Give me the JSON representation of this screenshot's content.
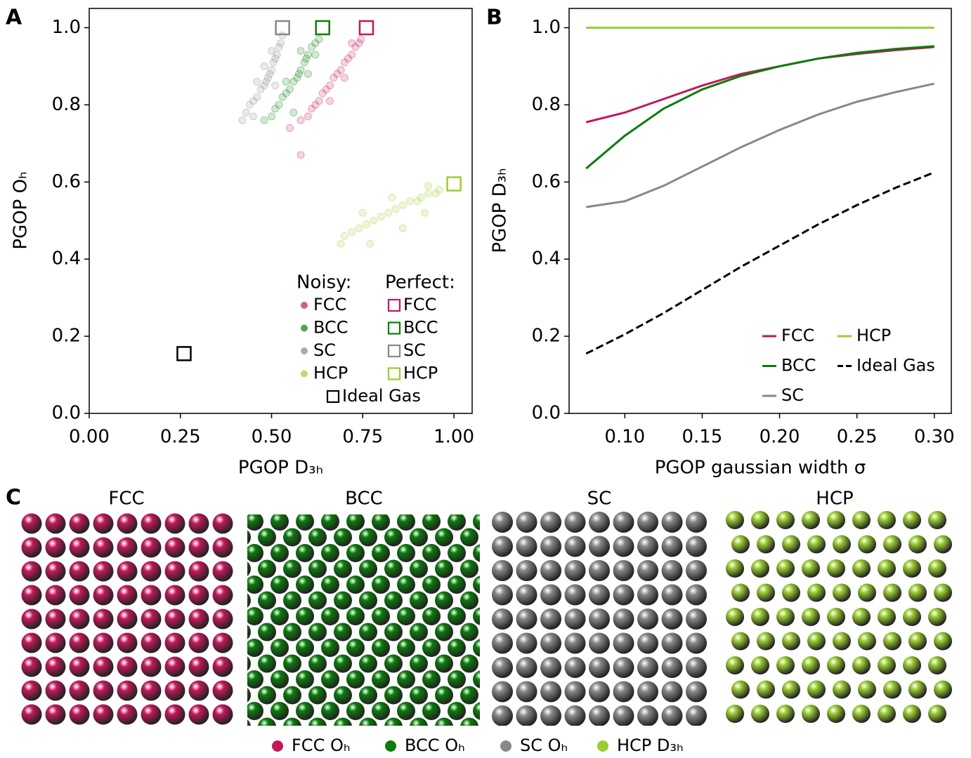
{
  "chart_data": [
    {
      "type": "scatter",
      "panel_label": "A",
      "x_label": "PGOP D₃ₕ",
      "y_label": "PGOP Oₕ",
      "xlim": [
        0,
        1.05
      ],
      "ylim": [
        0,
        1.05
      ],
      "xticks": [
        {
          "value": 0,
          "label": "0.00"
        },
        0.25,
        {
          "value": 0.5,
          "label": "0.50"
        },
        0.75,
        {
          "value": 1,
          "label": "1.00"
        }
      ],
      "yticks": [
        {
          "value": 0,
          "label": "0.0"
        },
        0.2,
        0.4,
        0.6,
        0.8,
        {
          "value": 1,
          "label": "1.0"
        }
      ],
      "legend_titles": [
        "Noisy:",
        "Perfect:"
      ],
      "series": [
        {
          "name": "FCC",
          "group": "Noisy:",
          "marker": "circle",
          "color": "#c2185b",
          "x": [
            0.745,
            0.74,
            0.73,
            0.72,
            0.71,
            0.7,
            0.69,
            0.68,
            0.67,
            0.66,
            0.65,
            0.64,
            0.63,
            0.62,
            0.61,
            0.6,
            0.58,
            0.55,
            0.58,
            0.7,
            0.72,
            0.66
          ],
          "values": [
            0.97,
            0.96,
            0.95,
            0.93,
            0.92,
            0.91,
            0.89,
            0.88,
            0.87,
            0.85,
            0.84,
            0.83,
            0.81,
            0.8,
            0.79,
            0.77,
            0.76,
            0.74,
            0.67,
            0.87,
            0.96,
            0.81
          ]
        },
        {
          "name": "BCC",
          "group": "Noisy:",
          "marker": "circle",
          "color": "#0a7d0a",
          "x": [
            0.63,
            0.62,
            0.61,
            0.6,
            0.595,
            0.59,
            0.58,
            0.575,
            0.57,
            0.56,
            0.55,
            0.54,
            0.53,
            0.52,
            0.51,
            0.5,
            0.48,
            0.56,
            0.6,
            0.58,
            0.54,
            0.62
          ],
          "values": [
            0.97,
            0.96,
            0.95,
            0.93,
            0.92,
            0.91,
            0.89,
            0.88,
            0.87,
            0.86,
            0.84,
            0.83,
            0.82,
            0.8,
            0.79,
            0.77,
            0.76,
            0.78,
            0.88,
            0.94,
            0.86,
            0.93
          ]
        },
        {
          "name": "SC",
          "group": "Noisy:",
          "marker": "circle",
          "color": "#888888",
          "x": [
            0.53,
            0.525,
            0.52,
            0.515,
            0.51,
            0.505,
            0.5,
            0.495,
            0.49,
            0.485,
            0.48,
            0.47,
            0.46,
            0.45,
            0.44,
            0.43,
            0.42,
            0.45,
            0.51,
            0.5,
            0.46,
            0.48
          ],
          "values": [
            0.98,
            0.96,
            0.95,
            0.93,
            0.92,
            0.91,
            0.89,
            0.88,
            0.87,
            0.86,
            0.85,
            0.84,
            0.82,
            0.81,
            0.8,
            0.78,
            0.76,
            0.77,
            0.85,
            0.94,
            0.86,
            0.9
          ]
        },
        {
          "name": "HCP",
          "group": "Noisy:",
          "marker": "circle",
          "color": "#9acd32",
          "x": [
            0.96,
            0.95,
            0.93,
            0.91,
            0.9,
            0.88,
            0.86,
            0.84,
            0.82,
            0.8,
            0.78,
            0.76,
            0.74,
            0.72,
            0.7,
            0.69,
            0.77,
            0.86,
            0.92,
            0.83,
            0.93,
            0.75
          ],
          "values": [
            0.58,
            0.57,
            0.57,
            0.56,
            0.55,
            0.55,
            0.54,
            0.53,
            0.52,
            0.51,
            0.5,
            0.49,
            0.48,
            0.47,
            0.46,
            0.44,
            0.44,
            0.48,
            0.52,
            0.56,
            0.59,
            0.52
          ]
        },
        {
          "name": "FCC",
          "group": "Perfect:",
          "marker": "square",
          "color": "#c2185b",
          "x": [
            0.76
          ],
          "values": [
            1.0
          ]
        },
        {
          "name": "BCC",
          "group": "Perfect:",
          "marker": "square",
          "color": "#0a7d0a",
          "x": [
            0.64
          ],
          "values": [
            1.0
          ]
        },
        {
          "name": "SC",
          "group": "Perfect:",
          "marker": "square",
          "color": "#888888",
          "x": [
            0.53
          ],
          "values": [
            1.0
          ]
        },
        {
          "name": "HCP",
          "group": "Perfect:",
          "marker": "square",
          "color": "#9acd32",
          "x": [
            1.0
          ],
          "values": [
            0.595
          ]
        },
        {
          "name": "Ideal Gas",
          "group": "Perfect:",
          "marker": "square",
          "color": "#000000",
          "x": [
            0.26
          ],
          "values": [
            0.155
          ]
        }
      ]
    },
    {
      "type": "line",
      "panel_label": "B",
      "x_label": "PGOP gaussian width σ",
      "y_label": "PGOP D₃ₕ",
      "xlim": [
        0.064,
        0.311
      ],
      "ylim": [
        0,
        1.05
      ],
      "xticks": [
        {
          "value": 0.1,
          "label": "0.10"
        },
        0.15,
        {
          "value": 0.2,
          "label": "0.20"
        },
        0.25,
        {
          "value": 0.3,
          "label": "0.30"
        }
      ],
      "yticks": [
        {
          "value": 0,
          "label": "0.0"
        },
        0.2,
        0.4,
        0.6,
        0.8,
        {
          "value": 1,
          "label": "1.0"
        }
      ],
      "x": [
        0.075,
        0.1,
        0.125,
        0.15,
        0.175,
        0.2,
        0.225,
        0.25,
        0.275,
        0.3
      ],
      "series": [
        {
          "name": "FCC",
          "color": "#c2185b",
          "dashed": false,
          "values": [
            0.755,
            0.78,
            0.815,
            0.85,
            0.88,
            0.9,
            0.92,
            0.932,
            0.942,
            0.95
          ]
        },
        {
          "name": "BCC",
          "color": "#0a7d0a",
          "dashed": false,
          "values": [
            0.635,
            0.72,
            0.79,
            0.84,
            0.875,
            0.9,
            0.92,
            0.935,
            0.945,
            0.952
          ]
        },
        {
          "name": "SC",
          "color": "#888888",
          "dashed": false,
          "values": [
            0.535,
            0.55,
            0.59,
            0.64,
            0.69,
            0.735,
            0.775,
            0.808,
            0.833,
            0.855
          ]
        },
        {
          "name": "HCP",
          "color": "#9acd32",
          "dashed": false,
          "values": [
            1.0,
            1.0,
            1.0,
            1.0,
            1.0,
            1.0,
            1.0,
            1.0,
            1.0,
            1.0
          ]
        },
        {
          "name": "Ideal Gas",
          "color": "#000000",
          "dashed": true,
          "values": [
            0.155,
            0.205,
            0.26,
            0.32,
            0.38,
            0.435,
            0.49,
            0.54,
            0.585,
            0.625
          ]
        }
      ]
    }
  ],
  "lattice_panel": {
    "panel_label": "C",
    "titles": [
      "FCC",
      "BCC",
      "SC",
      "HCP"
    ],
    "colors": [
      "#c2185b",
      "#0a7d0a",
      "#888888",
      "#9acd32"
    ],
    "legend": [
      "FCC Oₕ",
      "BCC Oₕ",
      "SC Oₕ",
      "HCP D₃ₕ"
    ]
  }
}
